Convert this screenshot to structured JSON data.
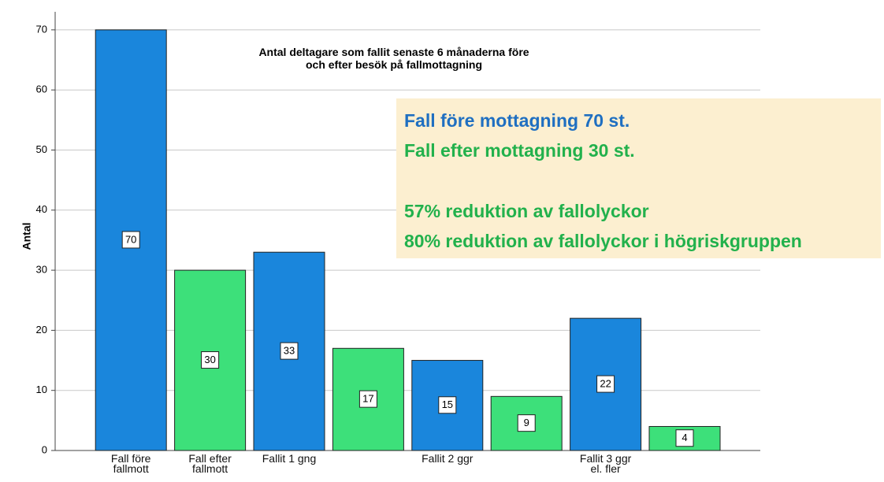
{
  "chart_data": {
    "type": "bar",
    "title": [
      "Antal deltagare som fallit senaste 6 månaderna före",
      "och efter besök på fallmottagning"
    ],
    "ylabel": "Antal",
    "categories": [
      "Fall före\nfallmott",
      "Fall efter\nfallmott",
      "Fallit 1 gng",
      null,
      "Fallit 2 ggr",
      null,
      "Fallit 3 ggr\nel. fler",
      null
    ],
    "values": [
      70,
      30,
      33,
      17,
      15,
      9,
      22,
      4
    ],
    "colors": [
      "#1a86dc",
      "#3de07a",
      "#1a86dc",
      "#3de07a",
      "#1a86dc",
      "#3de07a",
      "#1a86dc",
      "#3de07a"
    ],
    "ylim": [
      0,
      73
    ],
    "yticks": [
      0,
      10,
      20,
      30,
      40,
      50,
      60,
      70
    ],
    "grid": true,
    "annotations": [
      {
        "text": "Fall före mottagning 70 st.",
        "color": "#1f6fc1"
      },
      {
        "text": "Fall efter mottagning 30 st.",
        "color": "#22b14c"
      },
      {
        "text": "57% reduktion av fallolyckor",
        "color": "#22b14c"
      },
      {
        "text": "80% reduktion av fallolyckor i högriskgruppen",
        "color": "#22b14c"
      }
    ]
  }
}
